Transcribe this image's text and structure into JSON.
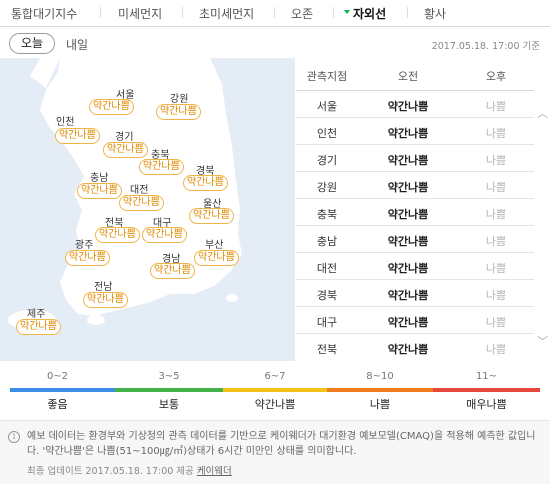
{
  "tabs": [
    {
      "label": "통합대기지수",
      "active": false
    },
    {
      "label": "미세먼지",
      "active": false
    },
    {
      "label": "초미세먼지",
      "active": false
    },
    {
      "label": "오존",
      "active": false
    },
    {
      "label": "자외선",
      "active": true
    },
    {
      "label": "황사",
      "active": false
    }
  ],
  "days": {
    "today": "오늘",
    "tomorrow": "내일"
  },
  "timestamp": "2017.05.18. 17:00 기준",
  "map": {
    "regions": [
      {
        "name": "서울",
        "level": "약간나쁨"
      },
      {
        "name": "강원",
        "level": "약간나쁨"
      },
      {
        "name": "인천",
        "level": "약간나쁨"
      },
      {
        "name": "경기",
        "level": "약간나쁨"
      },
      {
        "name": "충북",
        "level": "약간나쁨"
      },
      {
        "name": "경북",
        "level": "약간나쁨"
      },
      {
        "name": "충남",
        "level": "약간나쁨"
      },
      {
        "name": "대전",
        "level": "약간나쁨"
      },
      {
        "name": "울산",
        "level": "약간나쁨"
      },
      {
        "name": "전북",
        "level": "약간나쁨"
      },
      {
        "name": "대구",
        "level": "약간나쁨"
      },
      {
        "name": "광주",
        "level": "약간나쁨"
      },
      {
        "name": "경남",
        "level": "약간나쁨"
      },
      {
        "name": "부산",
        "level": "약간나쁨"
      },
      {
        "name": "전남",
        "level": "약간나쁨"
      },
      {
        "name": "제주",
        "level": "약간나쁨"
      }
    ]
  },
  "table": {
    "headers": [
      "관측지점",
      "오전",
      "오후"
    ],
    "rows": [
      {
        "region": "서울",
        "am": "약간나쁨",
        "pm": "나쁨"
      },
      {
        "region": "인천",
        "am": "약간나쁨",
        "pm": "나쁨"
      },
      {
        "region": "경기",
        "am": "약간나쁨",
        "pm": "나쁨"
      },
      {
        "region": "강원",
        "am": "약간나쁨",
        "pm": "나쁨"
      },
      {
        "region": "충북",
        "am": "약간나쁨",
        "pm": "나쁨"
      },
      {
        "region": "충남",
        "am": "약간나쁨",
        "pm": "나쁨"
      },
      {
        "region": "대전",
        "am": "약간나쁨",
        "pm": "나쁨"
      },
      {
        "region": "경북",
        "am": "약간나쁨",
        "pm": "나쁨"
      },
      {
        "region": "대구",
        "am": "약간나쁨",
        "pm": "나쁨"
      },
      {
        "region": "전북",
        "am": "약간나쁨",
        "pm": "나쁨"
      }
    ]
  },
  "legend": [
    {
      "range": "0~2",
      "label": "좋음",
      "color": "#3a8ee6"
    },
    {
      "range": "3~5",
      "label": "보통",
      "color": "#44b34a"
    },
    {
      "range": "6~7",
      "label": "약간나쁨",
      "color": "#f2c21b"
    },
    {
      "range": "8~10",
      "label": "나쁨",
      "color": "#f07c1e"
    },
    {
      "range": "11~",
      "label": "매우나쁨",
      "color": "#e8473c"
    }
  ],
  "notice": {
    "icon": "info-icon",
    "text": "예보 데이터는 환경부와 기상청의 관측 데이터를 기반으로 케이웨더가 대기환경 예보모델(CMAQ)을 적용해 예측한 값입니다. '약간나쁨'은 나쁨(51~100㎍/㎥)상태가 6시간 미만인 상태를 의미합니다.",
    "updated_prefix": "최종 업데이트 2017.05.18. 17:00 제공",
    "provider": "케이웨더"
  },
  "colors": {
    "accent": "#00b843",
    "badge": "#e08a00",
    "map_bg": "#e4ecf6",
    "land": "#ffffff"
  }
}
